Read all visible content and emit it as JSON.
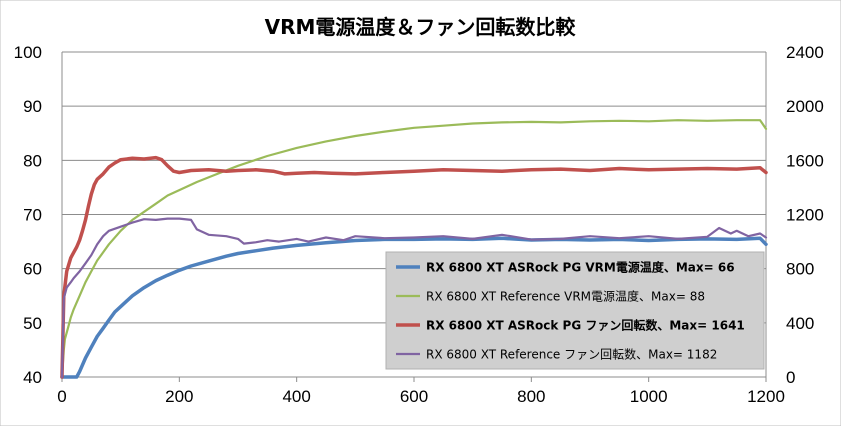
{
  "chart_data": {
    "type": "line",
    "title": "VRM電源温度＆ファン回転数比較",
    "x_ticks": [
      "0",
      "200",
      "400",
      "600",
      "800",
      "1000",
      "1200"
    ],
    "xlim": [
      0,
      1200
    ],
    "y_left_ticks": [
      "40",
      "50",
      "60",
      "70",
      "80",
      "90",
      "100"
    ],
    "ylim_left": [
      40,
      100
    ],
    "y_right_ticks": [
      "0",
      "400",
      "800",
      "1200",
      "1600",
      "2000",
      "2400"
    ],
    "ylim_right": [
      0,
      2400
    ],
    "grid": "horizontal",
    "legend_position": "lower-right",
    "series": [
      {
        "name": "RX 6800 XT ASRock PG VRM電源温度、Max= 66",
        "color": "#4F81BD",
        "axis": "left",
        "bold": true,
        "x": [
          0,
          5,
          10,
          15,
          20,
          25,
          30,
          40,
          50,
          60,
          70,
          80,
          90,
          100,
          110,
          120,
          140,
          160,
          180,
          200,
          220,
          250,
          280,
          300,
          330,
          360,
          400,
          450,
          500,
          550,
          600,
          650,
          700,
          750,
          800,
          850,
          900,
          950,
          1000,
          1050,
          1100,
          1150,
          1190,
          1200
        ],
        "y": [
          37,
          36,
          37,
          38,
          39,
          40,
          41,
          43.5,
          45.5,
          47.5,
          49,
          50.5,
          52,
          53,
          54,
          55,
          56.5,
          57.8,
          58.8,
          59.7,
          60.5,
          61.4,
          62.3,
          62.8,
          63.3,
          63.8,
          64.3,
          64.8,
          65.2,
          65.4,
          65.4,
          65.5,
          65.4,
          65.6,
          65.3,
          65.4,
          65.3,
          65.4,
          65.2,
          65.4,
          65.5,
          65.4,
          65.6,
          64.5
        ]
      },
      {
        "name": "RX 6800 XT Reference VRM電源温度、Max= 88",
        "color": "#9BBB59",
        "axis": "left",
        "bold": false,
        "x": [
          0,
          3,
          5,
          10,
          15,
          20,
          30,
          40,
          50,
          60,
          70,
          80,
          100,
          120,
          140,
          160,
          180,
          200,
          230,
          260,
          300,
          350,
          400,
          450,
          500,
          550,
          600,
          650,
          700,
          750,
          800,
          850,
          900,
          950,
          1000,
          1050,
          1100,
          1150,
          1190,
          1200
        ],
        "y": [
          40,
          45,
          47,
          49,
          51,
          52.5,
          55,
          57.5,
          59.5,
          61.5,
          63,
          64.5,
          67,
          69,
          70.5,
          72,
          73.5,
          74.5,
          76,
          77.3,
          79,
          80.8,
          82.3,
          83.5,
          84.5,
          85.3,
          86,
          86.4,
          86.8,
          87,
          87.1,
          87,
          87.2,
          87.3,
          87.2,
          87.4,
          87.3,
          87.4,
          87.4,
          85.8
        ]
      },
      {
        "name": "RX 6800 XT ASRock PG ファン回転数、Max= 1641",
        "color": "#C0504D",
        "axis": "right",
        "bold": true,
        "x": [
          0,
          3,
          8,
          15,
          20,
          25,
          30,
          35,
          40,
          45,
          50,
          55,
          60,
          70,
          80,
          90,
          100,
          120,
          140,
          160,
          170,
          180,
          190,
          200,
          220,
          250,
          280,
          300,
          330,
          360,
          380,
          400,
          430,
          460,
          500,
          550,
          600,
          650,
          700,
          750,
          800,
          850,
          900,
          950,
          1000,
          1050,
          1100,
          1150,
          1190,
          1200
        ],
        "y": [
          0,
          600,
          780,
          880,
          920,
          960,
          1010,
          1080,
          1160,
          1260,
          1350,
          1420,
          1460,
          1500,
          1550,
          1580,
          1605,
          1615,
          1610,
          1620,
          1605,
          1560,
          1520,
          1510,
          1525,
          1530,
          1520,
          1525,
          1530,
          1520,
          1500,
          1505,
          1510,
          1505,
          1500,
          1510,
          1520,
          1530,
          1525,
          1520,
          1530,
          1535,
          1525,
          1540,
          1530,
          1535,
          1540,
          1535,
          1545,
          1510
        ]
      },
      {
        "name": "RX 6800 XT Reference ファン回転数、Max= 1182",
        "color": "#8064A2",
        "axis": "right",
        "bold": false,
        "x": [
          0,
          3,
          8,
          15,
          20,
          30,
          40,
          50,
          60,
          70,
          80,
          100,
          120,
          140,
          160,
          180,
          200,
          220,
          230,
          250,
          280,
          300,
          310,
          330,
          350,
          370,
          400,
          420,
          450,
          480,
          500,
          550,
          600,
          650,
          700,
          750,
          800,
          850,
          900,
          950,
          1000,
          1050,
          1100,
          1120,
          1140,
          1150,
          1170,
          1190,
          1200
        ],
        "y": [
          0,
          580,
          660,
          700,
          730,
          780,
          840,
          900,
          980,
          1040,
          1080,
          1110,
          1140,
          1165,
          1160,
          1170,
          1170,
          1160,
          1090,
          1050,
          1040,
          1020,
          985,
          995,
          1010,
          1000,
          1020,
          1000,
          1030,
          1010,
          1040,
          1025,
          1030,
          1040,
          1020,
          1050,
          1015,
          1020,
          1040,
          1025,
          1040,
          1020,
          1035,
          1100,
          1060,
          1080,
          1040,
          1060,
          1030
        ]
      }
    ]
  }
}
